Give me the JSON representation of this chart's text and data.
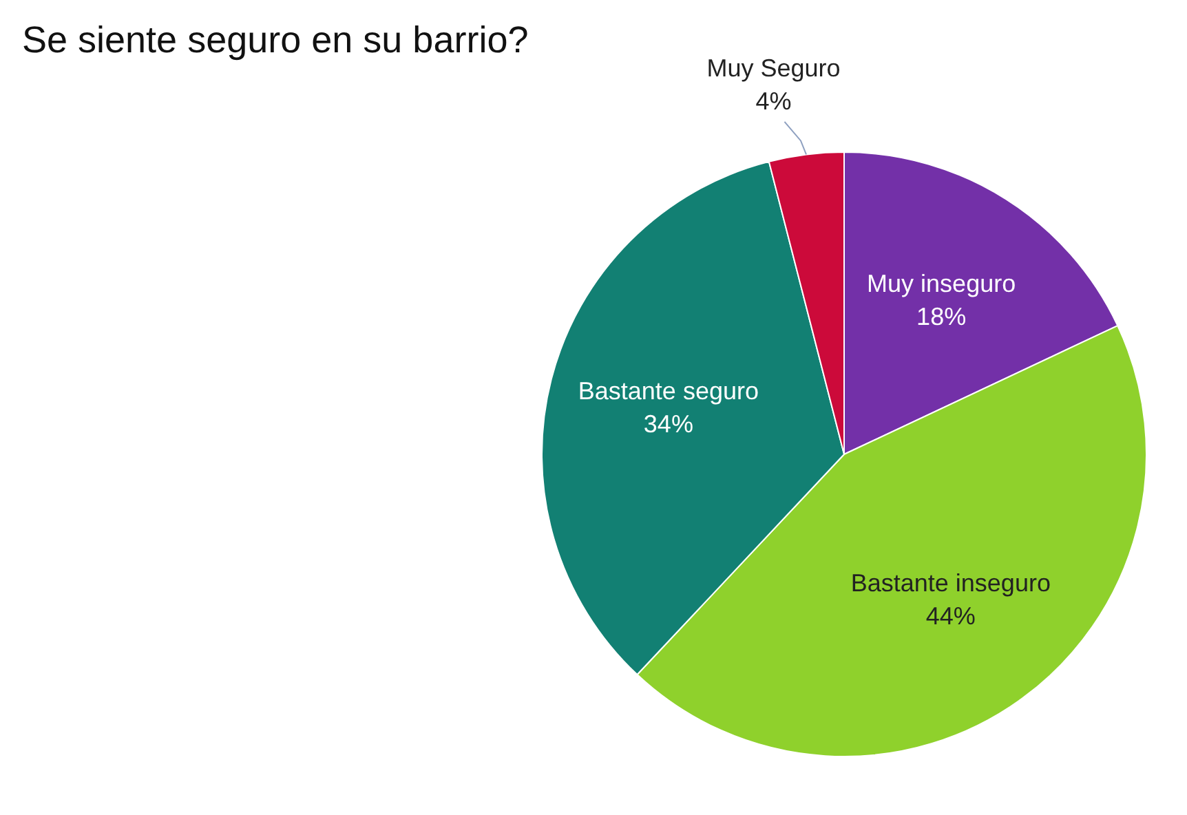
{
  "chart_data": {
    "type": "pie",
    "title": "Se siente seguro en su barrio?",
    "categories": [
      "Muy inseguro",
      "Bastante inseguro",
      "Bastante seguro",
      "Muy Seguro"
    ],
    "values": [
      18,
      44,
      34,
      4
    ],
    "colors": [
      "#7330a8",
      "#8fd12c",
      "#128073",
      "#cc0a3a"
    ],
    "value_labels": [
      "18%",
      "44%",
      "34%",
      "4%"
    ],
    "legend": false
  }
}
